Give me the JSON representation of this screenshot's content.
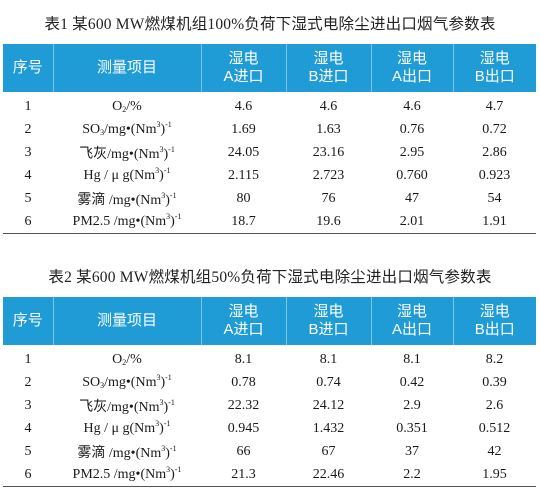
{
  "table1": {
    "caption": "表1 某600 MW燃煤机组100%负荷下湿式电除尘进出口烟气参数表",
    "headers": {
      "seq": "序号",
      "item": "测量项目",
      "col_a_in": [
        "湿电",
        "A进口"
      ],
      "col_b_in": [
        "湿电",
        "B进口"
      ],
      "col_a_out": [
        "湿电",
        "A出口"
      ],
      "col_b_out": [
        "湿电",
        "B出口"
      ]
    },
    "rows": [
      {
        "no": "1",
        "item": {
          "pre": "O",
          "sub": "2",
          "mid": "/%",
          "sup": "",
          "post": ""
        },
        "values": [
          "4.6",
          "4.6",
          "4.6",
          "4.7"
        ]
      },
      {
        "no": "2",
        "item": {
          "pre": "SO",
          "sub": "3",
          "mid": "/mg•(Nm",
          "sup": "3",
          "post": ")",
          "sup2": "-1"
        },
        "values": [
          "1.69",
          "1.63",
          "0.76",
          "0.72"
        ]
      },
      {
        "no": "3",
        "item": {
          "pre": "飞灰/mg•(Nm",
          "sub": "",
          "mid": "",
          "sup": "3",
          "post": ")",
          "sup2": "-1"
        },
        "values": [
          "24.05",
          "23.16",
          "2.95",
          "2.86"
        ]
      },
      {
        "no": "4",
        "item": {
          "pre": "Hg  / μ g(Nm",
          "sub": "",
          "mid": "",
          "sup": "3",
          "post": ")",
          "sup2": "-1"
        },
        "values": [
          "2.115",
          "2.723",
          "0.760",
          "0.923"
        ]
      },
      {
        "no": "5",
        "item": {
          "pre": "雾滴 /mg•(Nm",
          "sub": "",
          "mid": "",
          "sup": "3",
          "post": ")",
          "sup2": "-1"
        },
        "values": [
          "80",
          "76",
          "47",
          "54"
        ]
      },
      {
        "no": "6",
        "item": {
          "pre": "PM2.5 /mg•(Nm",
          "sub": "",
          "mid": "",
          "sup": "3",
          "post": ")",
          "sup2": "-1"
        },
        "values": [
          "18.7",
          "19.6",
          "2.01",
          "1.91"
        ]
      }
    ]
  },
  "table2": {
    "caption": "表2 某600 MW燃煤机组50%负荷下湿式电除尘进出口烟气参数表",
    "headers": {
      "seq": "序号",
      "item": "测量项目",
      "col_a_in": [
        "湿电",
        "A进口"
      ],
      "col_b_in": [
        "湿电",
        "B进口"
      ],
      "col_a_out": [
        "湿电",
        "A出口"
      ],
      "col_b_out": [
        "湿电",
        "B出口"
      ]
    },
    "rows": [
      {
        "no": "1",
        "item": {
          "pre": "O",
          "sub": "2",
          "mid": "/%",
          "sup": "",
          "post": ""
        },
        "values": [
          "8.1",
          "8.1",
          "8.1",
          "8.2"
        ]
      },
      {
        "no": "2",
        "item": {
          "pre": "SO",
          "sub": "3",
          "mid": "/mg•(Nm",
          "sup": "3",
          "post": ")",
          "sup2": "-1"
        },
        "values": [
          "0.78",
          "0.74",
          "0.42",
          "0.39"
        ]
      },
      {
        "no": "3",
        "item": {
          "pre": "飞灰/mg•(Nm",
          "sub": "",
          "mid": "",
          "sup": "3",
          "post": ")",
          "sup2": "-1"
        },
        "values": [
          "22.32",
          "24.12",
          "2.9",
          "2.6"
        ]
      },
      {
        "no": "4",
        "item": {
          "pre": "Hg  / μ g(Nm",
          "sub": "",
          "mid": "",
          "sup": "3",
          "post": ")",
          "sup2": "-1"
        },
        "values": [
          "0.945",
          "1.432",
          "0.351",
          "0.512"
        ]
      },
      {
        "no": "5",
        "item": {
          "pre": "雾滴 /mg•(Nm",
          "sub": "",
          "mid": "",
          "sup": "3",
          "post": ")",
          "sup2": "-1"
        },
        "values": [
          "66",
          "67",
          "37",
          "42"
        ]
      },
      {
        "no": "6",
        "item": {
          "pre": "PM2.5 /mg•(Nm",
          "sub": "",
          "mid": "",
          "sup": "3",
          "post": ")",
          "sup2": "-1"
        },
        "values": [
          "21.3",
          "22.46",
          "2.2",
          "1.95"
        ]
      }
    ]
  },
  "colors": {
    "header_bg": "#1f9cd6",
    "header_text": "#ffffff"
  }
}
